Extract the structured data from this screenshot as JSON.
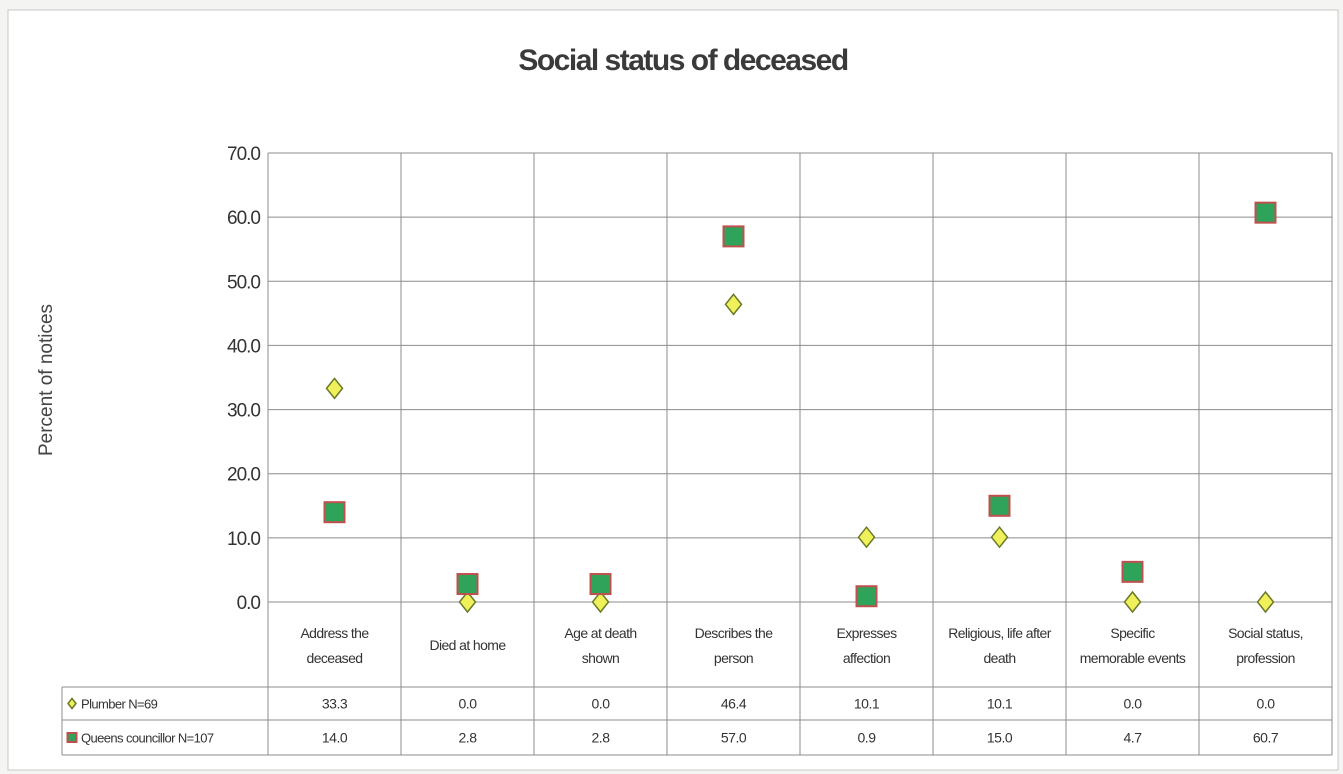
{
  "chart_data": {
    "type": "scatter",
    "title": "Social status of deceased",
    "ylabel": "Percent of notices",
    "xlabel": "",
    "ylim": [
      0,
      70
    ],
    "yticks": [
      "0.0",
      "10.0",
      "20.0",
      "30.0",
      "40.0",
      "50.0",
      "60.0",
      "70.0"
    ],
    "grid": true,
    "categories": [
      [
        "Address the",
        "deceased"
      ],
      [
        "Died at home"
      ],
      [
        "Age at death",
        "shown"
      ],
      [
        "Describes the",
        "person"
      ],
      [
        "Expresses",
        "affection"
      ],
      [
        "Religious, life after",
        "death"
      ],
      [
        "Specific",
        "memorable events"
      ],
      [
        "Social status,",
        "profession"
      ]
    ],
    "series": [
      {
        "name": "Plumber N=69",
        "marker": "diamond",
        "color": "#f0f05a",
        "edge": "#6a7a2a",
        "values": [
          33.3,
          0.0,
          0.0,
          46.4,
          10.1,
          10.1,
          0.0,
          0.0
        ],
        "labels": [
          "33.3",
          "0.0",
          "0.0",
          "46.4",
          "10.1",
          "10.1",
          "0.0",
          "0.0"
        ]
      },
      {
        "name": "Queens councillor N=107",
        "marker": "square",
        "color": "#2fa35a",
        "edge": "#c0504d",
        "values": [
          14.0,
          2.8,
          2.8,
          57.0,
          0.9,
          15.0,
          4.7,
          60.7
        ],
        "labels": [
          "14.0",
          "2.8",
          "2.8",
          "57.0",
          "0.9",
          "15.0",
          "4.7",
          "60.7"
        ]
      }
    ]
  }
}
